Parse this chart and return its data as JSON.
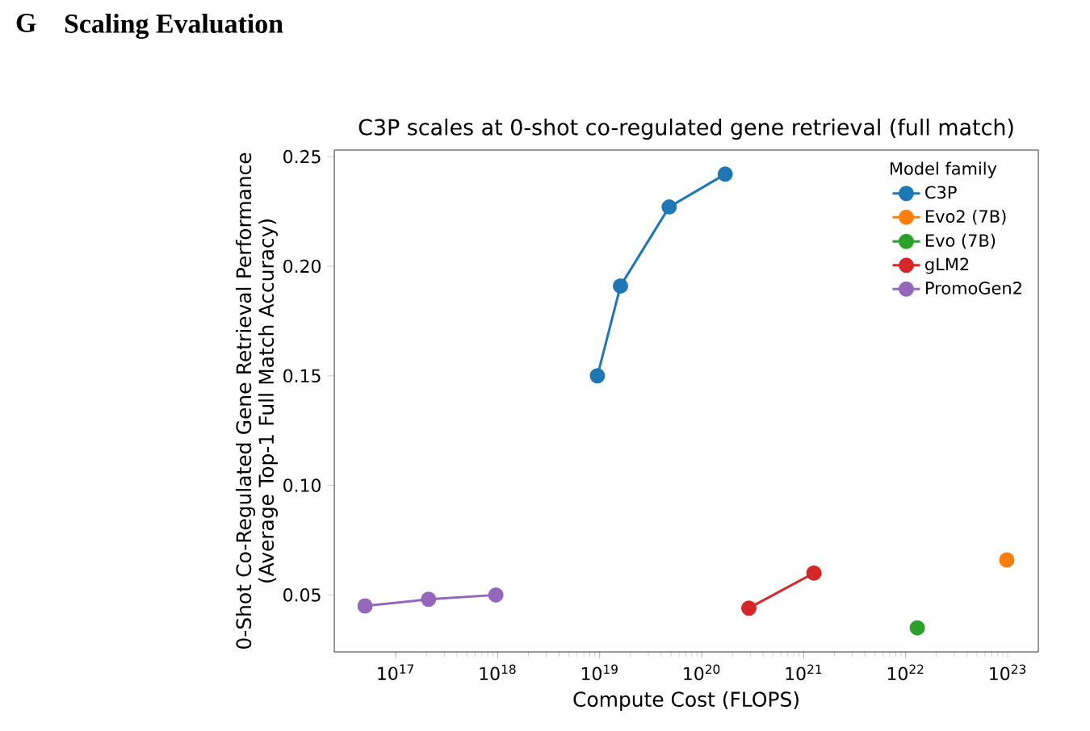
{
  "chart_data": {
    "type": "line",
    "title": "C3P scales at 0-shot co-regulated gene retrieval (full match)",
    "xlabel": "Compute Cost (FLOPS)",
    "ylabel": "0-Shot Co-Regulated Gene Retrieval Performance (Average Top-1 Full Match Accuracy)",
    "legend_title": "Model family",
    "annotations": [
      "**G**",
      "**Scaling Evaluation**"
    ],
    "series": [
      {
        "name": "C3P",
        "color": "#1f77b4",
        "x": [
          9.5e+18,
          1.6e+19,
          4.8e+19,
          1.7e+20
        ],
        "values": [
          0.15,
          0.191,
          0.227,
          0.242
        ]
      },
      {
        "name": "Evo2 (7B)",
        "color": "#ff7f0e",
        "x": [
          9.8e+22
        ],
        "values": [
          0.066
        ]
      },
      {
        "name": "Evo (7B)",
        "color": "#2ca02c",
        "x": [
          1.3e+22
        ],
        "values": [
          0.035
        ]
      },
      {
        "name": "gLM2",
        "color": "#d62728",
        "x": [
          2.9e+20,
          1.26e+21
        ],
        "values": [
          0.044,
          0.06
        ]
      },
      {
        "name": "PromoGen2",
        "color": "#9467bd",
        "x": [
          5e+16,
          2.1e+17,
          9.6e+17
        ],
        "values": [
          0.045,
          0.048,
          0.05
        ]
      }
    ],
    "log": "x",
    "xlim": [
      2.5e+16,
      2e+23
    ],
    "ylim": [
      0.024,
      0.253
    ],
    "xticks": [
      {
        "value": 1e+17,
        "label": "10$^{17}$"
      },
      {
        "value": 1e+18,
        "label": "10$^{18}$"
      },
      {
        "value": 1e+19,
        "label": "10$^{19}$"
      },
      {
        "value": 1e+20,
        "label": "10$^{20}$"
      },
      {
        "value": 1e+21,
        "label": "10$^{21}$"
      },
      {
        "value": 1e+22,
        "label": "10$^{22}$"
      },
      {
        "value": 1e+23,
        "label": "10$^{23}$"
      }
    ],
    "yticks": [
      0.05,
      {
        "value": 0.1,
        "label": "0.10"
      },
      0.15,
      {
        "value": 0.2,
        "label": "0.20"
      },
      0.25
    ],
    "marker": "circle",
    "line_style": "solid",
    "legend": "top right",
    "grid": false
  }
}
